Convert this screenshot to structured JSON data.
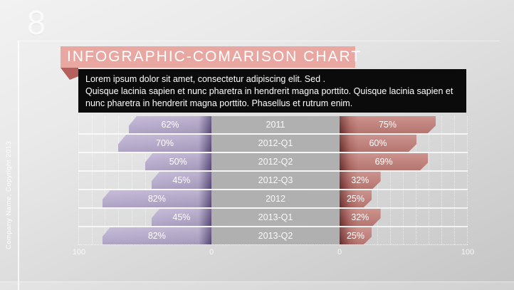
{
  "slide": {
    "page_number": "8",
    "footer_vertical": "Company Name, Copyright 2013"
  },
  "header": {
    "title": "INFOGRAPHIC-COMARISON CHART"
  },
  "description": {
    "line1": "Lorem ipsum dolor sit amet, consectetur adipiscing elit. Sed .",
    "line2": "Quisque lacinia sapien et nunc pharetra in hendrerit magna porttito. Quisque lacinia sapien et nunc pharetra in hendrerit magna porttito. Phasellus et rutrum enim."
  },
  "chart_data": {
    "type": "bar",
    "subtype": "tornado-comparison",
    "title": "INFOGRAPHIC-COMARISON CHART",
    "categories": [
      "2011",
      "2012-Q1",
      "2012-Q2",
      "2012-Q3",
      "2012",
      "2013-Q1",
      "2013-Q2"
    ],
    "series": [
      {
        "name": "left",
        "color": "#b2a5c8",
        "values": [
          62,
          70,
          50,
          45,
          82,
          45,
          82
        ]
      },
      {
        "name": "right",
        "color": "#c37e78",
        "values": [
          75,
          60,
          69,
          32,
          25,
          32,
          25
        ]
      }
    ],
    "value_suffix": "%",
    "axes": {
      "left_outer": "100",
      "left_inner": "0",
      "right_inner": "0",
      "right_outer": "100",
      "max": 100,
      "gridline_interval": 10,
      "grid": true
    },
    "legend_position": "none"
  },
  "colors": {
    "banner": "#e9a7a2",
    "banner_fold": "#b5605c",
    "textbox_bg": "#0b0b0b",
    "center_column": "#b0b0b0",
    "left_bar": "#b2a5c8",
    "left_bar_dark": "#5a4b7d",
    "right_bar": "#c37e78",
    "right_bar_dark": "#6e2d2c"
  }
}
